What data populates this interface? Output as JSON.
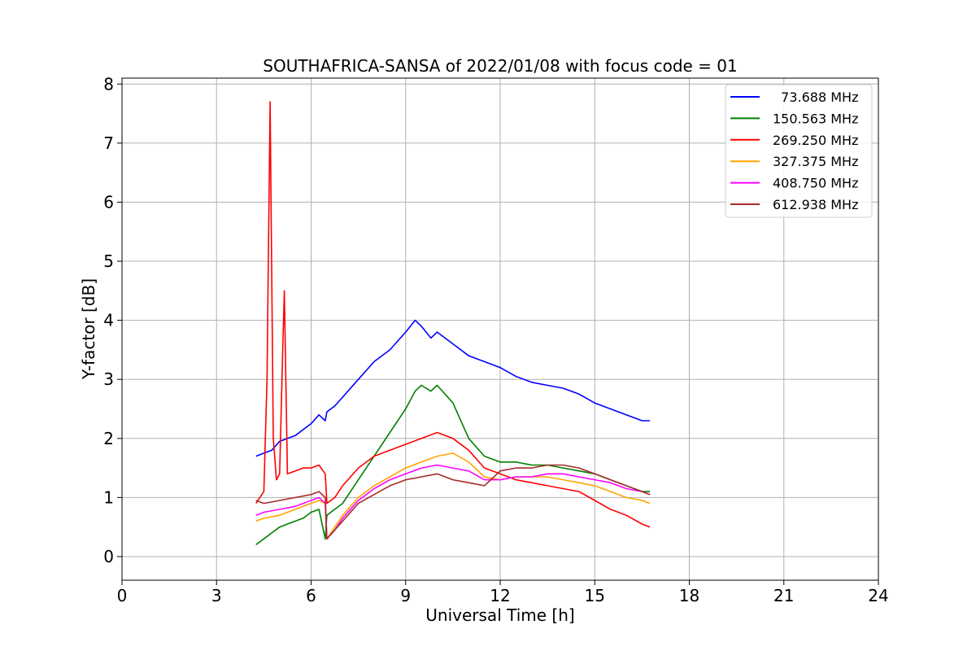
{
  "chart_data": {
    "type": "line",
    "title": "SOUTHAFRICA-SANSA of 2022/01/08 with focus code = 01",
    "xlabel": "Universal Time [h]",
    "ylabel": "Y-factor [dB]",
    "xlim": [
      0,
      24
    ],
    "ylim": [
      -0.4,
      8.1
    ],
    "xticks": [
      0,
      3,
      6,
      9,
      12,
      15,
      18,
      21,
      24
    ],
    "xtick_labels": [
      "0",
      "3",
      "6",
      "9",
      "12",
      "15",
      "18",
      "21",
      "24"
    ],
    "yticks": [
      0,
      1,
      2,
      3,
      4,
      5,
      6,
      7,
      8
    ],
    "ytick_labels": [
      "0",
      "1",
      "2",
      "3",
      "4",
      "5",
      "6",
      "7",
      "8"
    ],
    "grid": true,
    "legend_position": "top-right",
    "series": [
      {
        "name": "  73.688 MHz",
        "color": "#0000ff",
        "x": [
          4.25,
          4.5,
          4.75,
          5.0,
          5.25,
          5.5,
          5.75,
          6.0,
          6.25,
          6.45,
          6.5,
          6.75,
          7.0,
          7.5,
          8.0,
          8.5,
          9.0,
          9.3,
          9.5,
          9.8,
          10.0,
          10.5,
          11.0,
          11.5,
          12.0,
          12.5,
          13.0,
          13.5,
          14.0,
          14.5,
          15.0,
          15.5,
          16.0,
          16.5,
          16.75
        ],
        "values": [
          1.7,
          1.75,
          1.8,
          1.95,
          2.0,
          2.05,
          2.15,
          2.25,
          2.4,
          2.3,
          2.45,
          2.55,
          2.7,
          3.0,
          3.3,
          3.5,
          3.8,
          4.0,
          3.9,
          3.7,
          3.8,
          3.6,
          3.4,
          3.3,
          3.2,
          3.05,
          2.95,
          2.9,
          2.85,
          2.75,
          2.6,
          2.5,
          2.4,
          2.3,
          2.3
        ]
      },
      {
        "name": "150.563 MHz",
        "color": "#008000",
        "x": [
          4.25,
          4.5,
          4.75,
          5.0,
          5.25,
          5.5,
          5.75,
          6.0,
          6.25,
          6.45,
          6.5,
          6.75,
          7.0,
          7.5,
          8.0,
          8.5,
          9.0,
          9.3,
          9.5,
          9.8,
          10.0,
          10.5,
          11.0,
          11.5,
          12.0,
          12.5,
          13.0,
          13.5,
          14.0,
          14.5,
          15.0,
          15.5,
          16.0,
          16.5,
          16.75
        ],
        "values": [
          0.2,
          0.3,
          0.4,
          0.5,
          0.55,
          0.6,
          0.65,
          0.75,
          0.8,
          0.3,
          0.7,
          0.8,
          0.9,
          1.3,
          1.7,
          2.1,
          2.5,
          2.8,
          2.9,
          2.8,
          2.9,
          2.6,
          2.0,
          1.7,
          1.6,
          1.6,
          1.55,
          1.55,
          1.5,
          1.45,
          1.4,
          1.3,
          1.2,
          1.1,
          1.1
        ]
      },
      {
        "name": "269.250 MHz",
        "color": "#ff0000",
        "x": [
          4.25,
          4.5,
          4.6,
          4.7,
          4.8,
          4.9,
          5.0,
          5.1,
          5.15,
          5.25,
          5.5,
          5.75,
          6.0,
          6.25,
          6.45,
          6.5,
          6.75,
          7.0,
          7.5,
          8.0,
          8.5,
          9.0,
          9.5,
          10.0,
          10.5,
          11.0,
          11.5,
          12.0,
          12.5,
          13.0,
          13.5,
          14.0,
          14.5,
          15.0,
          15.5,
          16.0,
          16.5,
          16.75
        ],
        "values": [
          0.9,
          1.1,
          3.0,
          7.7,
          2.0,
          1.3,
          1.4,
          3.5,
          4.5,
          1.4,
          1.45,
          1.5,
          1.5,
          1.55,
          1.4,
          0.9,
          1.0,
          1.2,
          1.5,
          1.7,
          1.8,
          1.9,
          2.0,
          2.1,
          2.0,
          1.8,
          1.5,
          1.4,
          1.3,
          1.25,
          1.2,
          1.15,
          1.1,
          0.95,
          0.8,
          0.7,
          0.55,
          0.5
        ]
      },
      {
        "name": "327.375 MHz",
        "color": "#ffa500",
        "x": [
          4.25,
          4.5,
          5.0,
          5.5,
          6.0,
          6.25,
          6.45,
          6.5,
          6.75,
          7.0,
          7.5,
          8.0,
          8.5,
          9.0,
          9.5,
          10.0,
          10.5,
          11.0,
          11.5,
          12.0,
          12.5,
          13.0,
          13.5,
          14.0,
          14.5,
          15.0,
          15.5,
          16.0,
          16.5,
          16.75
        ],
        "values": [
          0.6,
          0.65,
          0.7,
          0.8,
          0.9,
          0.95,
          0.9,
          0.3,
          0.5,
          0.7,
          1.0,
          1.2,
          1.35,
          1.5,
          1.6,
          1.7,
          1.75,
          1.6,
          1.35,
          1.3,
          1.35,
          1.35,
          1.35,
          1.3,
          1.25,
          1.2,
          1.1,
          1.0,
          0.95,
          0.9
        ]
      },
      {
        "name": "408.750 MHz",
        "color": "#ff00ff",
        "x": [
          4.25,
          4.5,
          5.0,
          5.5,
          6.0,
          6.25,
          6.45,
          6.5,
          6.75,
          7.0,
          7.5,
          8.0,
          8.5,
          9.0,
          9.5,
          10.0,
          10.5,
          11.0,
          11.5,
          12.0,
          12.5,
          13.0,
          13.5,
          14.0,
          14.5,
          15.0,
          15.5,
          16.0,
          16.5,
          16.75
        ],
        "values": [
          0.7,
          0.75,
          0.8,
          0.85,
          0.95,
          1.0,
          0.9,
          0.3,
          0.45,
          0.65,
          0.95,
          1.15,
          1.3,
          1.4,
          1.5,
          1.55,
          1.5,
          1.45,
          1.3,
          1.3,
          1.35,
          1.35,
          1.4,
          1.4,
          1.35,
          1.3,
          1.25,
          1.15,
          1.1,
          1.05
        ]
      },
      {
        "name": "612.938 MHz",
        "color": "#a52a2a",
        "x": [
          4.25,
          4.5,
          5.0,
          5.5,
          6.0,
          6.25,
          6.45,
          6.5,
          6.75,
          7.0,
          7.5,
          8.0,
          8.5,
          9.0,
          9.5,
          10.0,
          10.5,
          11.0,
          11.5,
          12.0,
          12.5,
          13.0,
          13.5,
          14.0,
          14.5,
          15.0,
          15.5,
          16.0,
          16.5,
          16.75
        ],
        "values": [
          0.95,
          0.9,
          0.95,
          1.0,
          1.05,
          1.1,
          1.0,
          0.3,
          0.45,
          0.6,
          0.9,
          1.05,
          1.2,
          1.3,
          1.35,
          1.4,
          1.3,
          1.25,
          1.2,
          1.45,
          1.5,
          1.5,
          1.55,
          1.55,
          1.5,
          1.4,
          1.3,
          1.2,
          1.1,
          1.05
        ]
      }
    ]
  }
}
